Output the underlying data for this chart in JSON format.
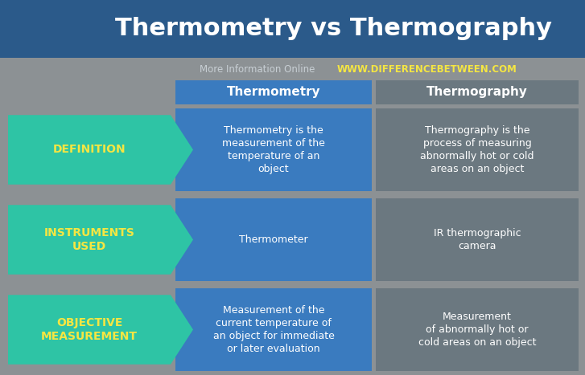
{
  "title": "Thermometry vs Thermography",
  "subtitle_gray": "More Information Online",
  "subtitle_url": "WWW.DIFFERENCEBETWEEN.COM",
  "col1_header": "Thermometry",
  "col2_header": "Thermography",
  "rows": [
    {
      "label": "DEFINITION",
      "col1": "Thermometry is the\nmeasurement of the\ntemperature of an\nobject",
      "col2": "Thermography is the\nprocess of measuring\nabnormally hot or cold\nareas on an object"
    },
    {
      "label": "INSTRUMENTS\nUSED",
      "col1": "Thermometer",
      "col2": "IR thermographic\ncamera"
    },
    {
      "label": "OBJECTIVE\nMEASUREMENT",
      "col1": "Measurement of the\ncurrent temperature of\nan object for immediate\nor later evaluation",
      "col2": "Measurement\nof abnormally hot or\ncold areas on an object"
    }
  ],
  "bg_color": "#8c9194",
  "title_bg_color": "#2b5a8a",
  "title_text_color": "#ffffff",
  "header_bg_color": "#3a7bbf",
  "header_text_color": "#ffffff",
  "col1_bg_color": "#3a7bbf",
  "col1_text_color": "#ffffff",
  "col2_bg_color": "#6b7880",
  "col2_text_color": "#ffffff",
  "arrow_bg_color": "#2ec4a5",
  "arrow_text_color": "#f5e642",
  "subtitle_gray_color": "#c8cfd4",
  "subtitle_url_color": "#f5e642"
}
